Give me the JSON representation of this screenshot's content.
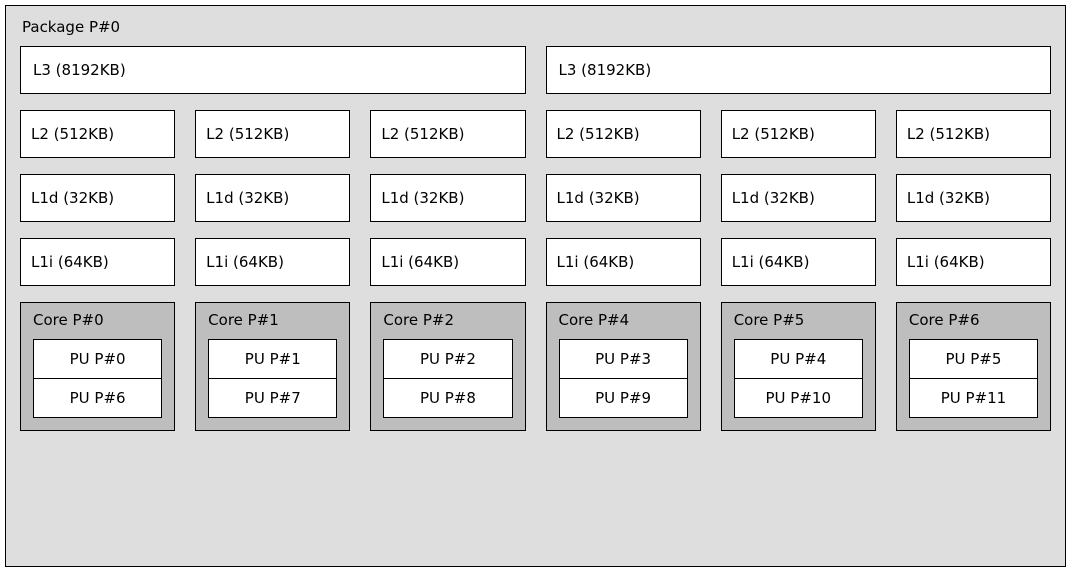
{
  "type": "hwloc-topology",
  "colors": {
    "package_bg": "#dedede",
    "cache_bg": "#ffffff",
    "core_bg": "#bebebe",
    "pu_bg": "#ffffff",
    "border": "#000000",
    "text": "#000000"
  },
  "fontsize": 15,
  "package": {
    "label": "Package P#0"
  },
  "ccx": [
    {
      "l3": "L3 (8192KB)",
      "cores": [
        {
          "l2": "L2 (512KB)",
          "l1d": "L1d (32KB)",
          "l1i": "L1i (64KB)",
          "core_label": "Core P#0",
          "pu": [
            "PU P#0",
            "PU P#6"
          ]
        },
        {
          "l2": "L2 (512KB)",
          "l1d": "L1d (32KB)",
          "l1i": "L1i (64KB)",
          "core_label": "Core P#1",
          "pu": [
            "PU P#1",
            "PU P#7"
          ]
        },
        {
          "l2": "L2 (512KB)",
          "l1d": "L1d (32KB)",
          "l1i": "L1i (64KB)",
          "core_label": "Core P#2",
          "pu": [
            "PU P#2",
            "PU P#8"
          ]
        }
      ]
    },
    {
      "l3": "L3 (8192KB)",
      "cores": [
        {
          "l2": "L2 (512KB)",
          "l1d": "L1d (32KB)",
          "l1i": "L1i (64KB)",
          "core_label": "Core P#4",
          "pu": [
            "PU P#3",
            "PU P#9"
          ]
        },
        {
          "l2": "L2 (512KB)",
          "l1d": "L1d (32KB)",
          "l1i": "L1i (64KB)",
          "core_label": "Core P#5",
          "pu": [
            "PU P#4",
            "PU P#10"
          ]
        },
        {
          "l2": "L2 (512KB)",
          "l1d": "L1d (32KB)",
          "l1i": "L1i (64KB)",
          "core_label": "Core P#6",
          "pu": [
            "PU P#5",
            "PU P#11"
          ]
        }
      ]
    }
  ]
}
